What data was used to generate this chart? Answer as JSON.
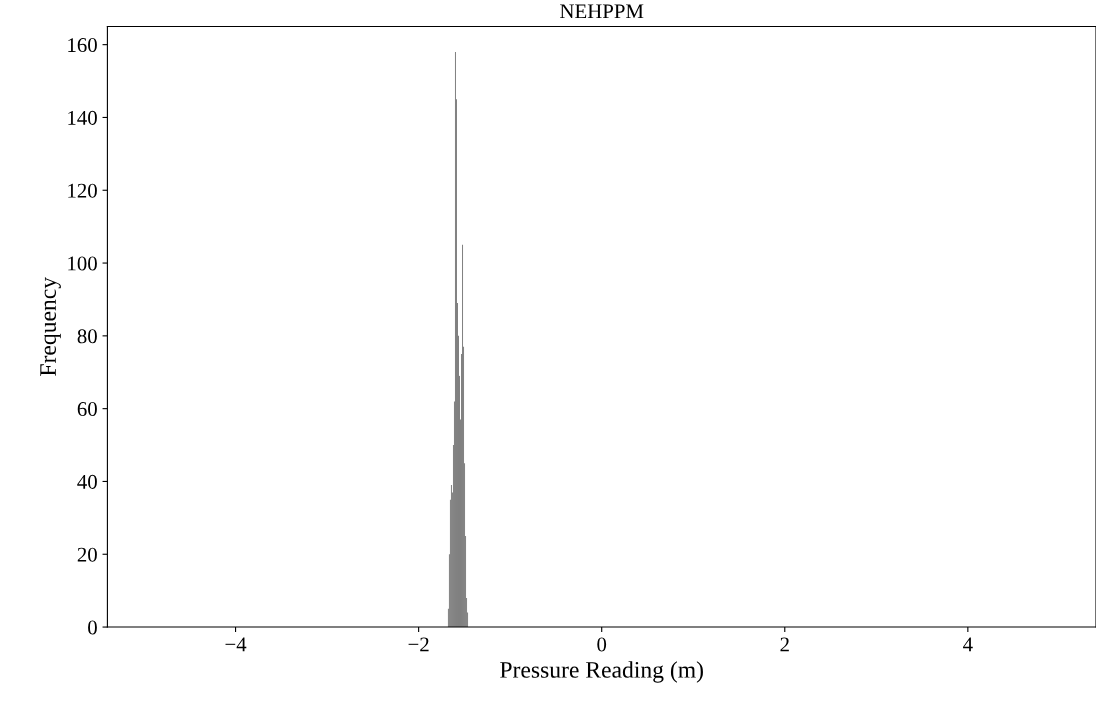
{
  "chart_data": {
    "type": "histogram",
    "title": "NEHPPM",
    "xlabel": "Pressure Reading (m)",
    "ylabel": "Frequency",
    "bins": [
      -1.68,
      -1.669,
      -1.658,
      -1.647,
      -1.636,
      -1.625,
      -1.614,
      -1.603,
      -1.592,
      -1.581,
      -1.57,
      -1.559,
      -1.548,
      -1.537,
      -1.526,
      -1.515,
      -1.504,
      -1.493,
      -1.482,
      -1.471,
      -1.46
    ],
    "values": [
      5,
      20,
      35,
      39,
      37,
      50,
      62,
      158,
      145,
      89,
      80,
      69,
      57,
      75,
      105,
      77,
      45,
      25,
      8,
      4
    ],
    "color": "#808080",
    "xlim": [
      -5.4,
      5.4
    ],
    "xticks": [
      {
        "value": -4,
        "label": "−4"
      },
      {
        "value": -2,
        "label": "−2"
      },
      0,
      2,
      4
    ],
    "ylim": [
      0,
      165
    ],
    "yticks": [
      0,
      20,
      40,
      60,
      80,
      100,
      120,
      140,
      160
    ],
    "grid": false
  }
}
